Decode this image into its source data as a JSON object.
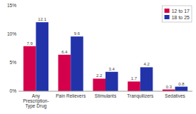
{
  "chart_data": {
    "type": "bar",
    "categories": [
      "Any\nPrescription-\nType Drug",
      "Pain Relievers",
      "Stimulants",
      "Tranquilizers",
      "Sedatives"
    ],
    "series": [
      {
        "name": "12 to 17",
        "color": "#d4004c",
        "values": [
          7.9,
          6.4,
          2.2,
          1.7,
          0.3
        ]
      },
      {
        "name": "18 to 25",
        "color": "#2233aa",
        "values": [
          12.1,
          9.6,
          3.4,
          4.2,
          0.8
        ]
      }
    ],
    "ylim": [
      0,
      15
    ],
    "yticks": [
      {
        "value": 0,
        "label": "0%"
      },
      {
        "value": 5,
        "label": "5%"
      },
      {
        "value": 10,
        "label": "10%"
      },
      {
        "value": 15,
        "label": "15%"
      }
    ],
    "grid": false,
    "legend": "upper right",
    "data_labels": true
  }
}
